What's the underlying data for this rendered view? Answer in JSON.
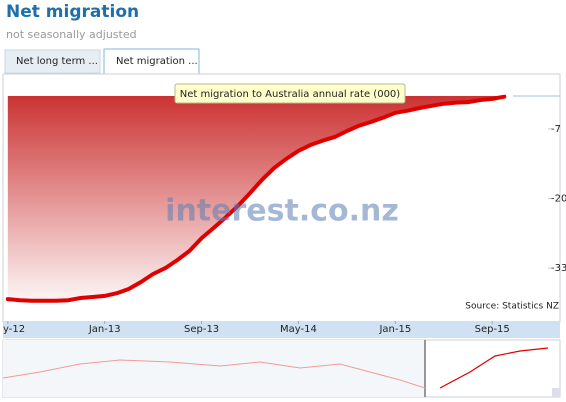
{
  "header": {
    "title": "Net migration",
    "subtitle": "not seasonally adjusted"
  },
  "tabs": [
    "Net long term ...",
    "Net migration ..."
  ],
  "chart_data": {
    "type": "area",
    "tooltip": "Net migration to Australia annual rate (000)",
    "watermark": "interest.co.nz",
    "source": "Source: Statistics NZ",
    "color": "#e00000",
    "values": [
      -38.8,
      -39.0,
      -39.1,
      -39.1,
      -39.1,
      -39.0,
      -38.6,
      -38.4,
      -38.2,
      -37.7,
      -36.9,
      -35.6,
      -34.1,
      -33.0,
      -31.5,
      -29.8,
      -27.4,
      -25.5,
      -23.5,
      -21.4,
      -19.0,
      -16.5,
      -14.3,
      -12.6,
      -11.1,
      -10.0,
      -9.2,
      -8.5,
      -7.4,
      -6.4,
      -5.7,
      -4.9,
      -4.0,
      -3.6,
      -3.1,
      -2.7,
      -2.3,
      -2.1,
      -2.0,
      -1.6,
      -1.4,
      -1.0
    ],
    "xlim": [
      -0.4,
      45.6
    ],
    "xticks": [
      {
        "value": 0,
        "label": "y-12"
      },
      {
        "value": 8,
        "label": "Jan-13"
      },
      {
        "value": 16,
        "label": "Sep-13"
      },
      {
        "value": 24,
        "label": "May-14"
      },
      {
        "value": 32,
        "label": "Jan-15"
      },
      {
        "value": 40,
        "label": "Sep-15"
      }
    ],
    "ylim": [
      -42.7,
      2.5
    ],
    "yticks": [
      -7,
      -20,
      -33
    ]
  }
}
